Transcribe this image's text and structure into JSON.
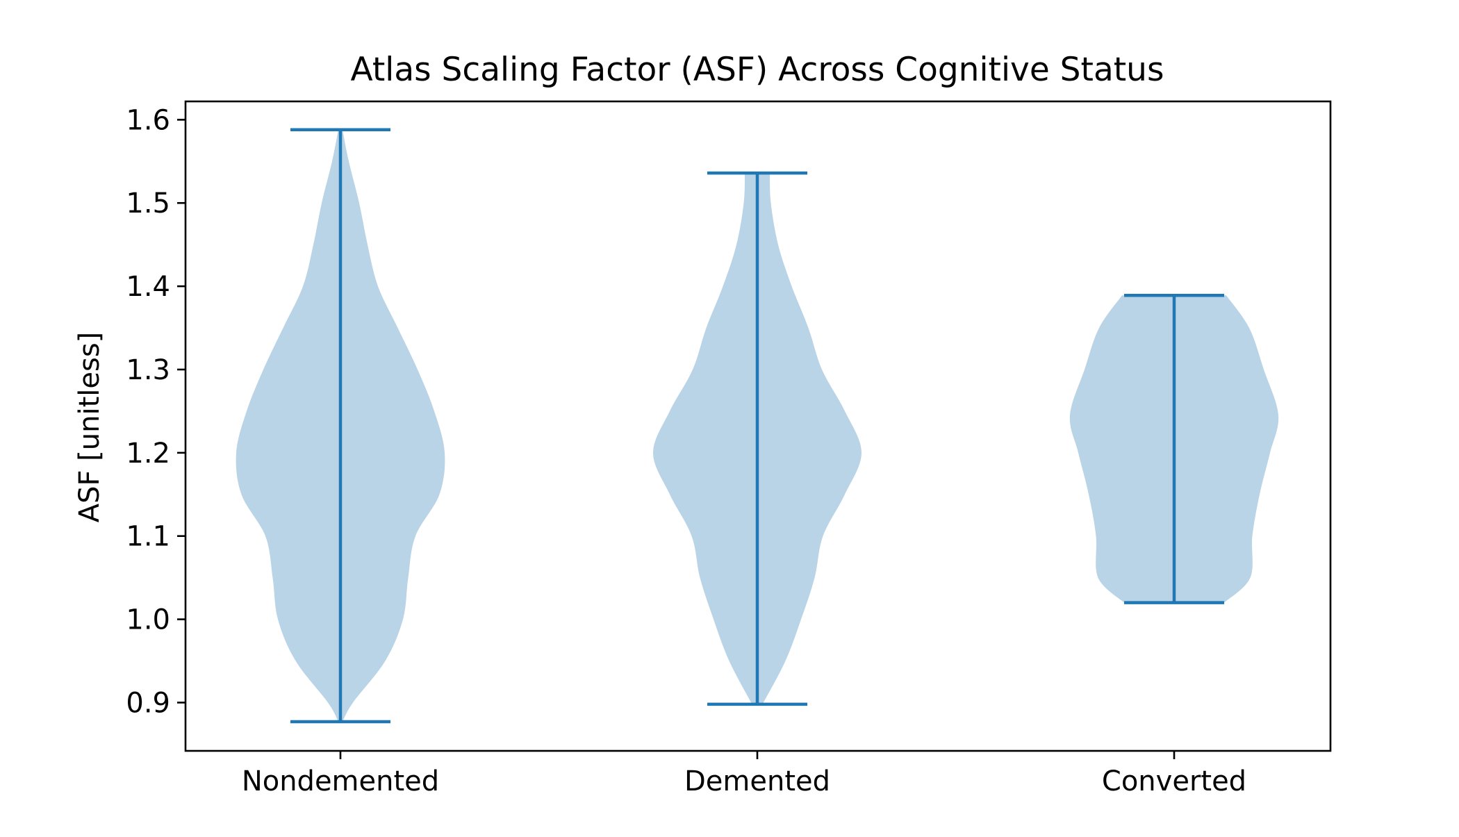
{
  "chart_data": {
    "type": "violin",
    "title": "Atlas Scaling Factor (ASF) Across Cognitive Status",
    "xlabel": "",
    "ylabel": "ASF [unitless]",
    "ylim": [
      0.842,
      1.622
    ],
    "yticks": [
      0.9,
      1.0,
      1.1,
      1.2,
      1.3,
      1.4,
      1.5,
      1.6
    ],
    "ytick_labels": [
      "0.9",
      "1.0",
      "1.1",
      "1.2",
      "1.3",
      "1.4",
      "1.5",
      "1.6"
    ],
    "categories": [
      "Nondemented",
      "Demented",
      "Converted"
    ],
    "grid": false,
    "legend": "none",
    "colors": {
      "body": "#b9d4e7",
      "lines": "#1f77b4",
      "axes": "#000000"
    },
    "series": [
      {
        "category": "Nondemented",
        "min": 0.877,
        "max": 1.588,
        "density": [
          [
            0.877,
            0.02
          ],
          [
            0.9,
            0.12
          ],
          [
            0.95,
            0.43
          ],
          [
            1.0,
            0.6
          ],
          [
            1.05,
            0.65
          ],
          [
            1.1,
            0.72
          ],
          [
            1.15,
            0.95
          ],
          [
            1.2,
            1.0
          ],
          [
            1.25,
            0.9
          ],
          [
            1.3,
            0.74
          ],
          [
            1.35,
            0.55
          ],
          [
            1.4,
            0.36
          ],
          [
            1.45,
            0.26
          ],
          [
            1.5,
            0.18
          ],
          [
            1.55,
            0.08
          ],
          [
            1.588,
            0.02
          ]
        ]
      },
      {
        "category": "Demented",
        "min": 0.898,
        "max": 1.536,
        "density": [
          [
            0.898,
            0.05
          ],
          [
            0.95,
            0.27
          ],
          [
            1.0,
            0.42
          ],
          [
            1.05,
            0.55
          ],
          [
            1.1,
            0.63
          ],
          [
            1.15,
            0.84
          ],
          [
            1.2,
            1.0
          ],
          [
            1.25,
            0.84
          ],
          [
            1.3,
            0.62
          ],
          [
            1.35,
            0.49
          ],
          [
            1.4,
            0.33
          ],
          [
            1.45,
            0.2
          ],
          [
            1.5,
            0.13
          ],
          [
            1.536,
            0.12
          ]
        ]
      },
      {
        "category": "Converted",
        "min": 1.02,
        "max": 1.389,
        "density": [
          [
            1.02,
            0.48
          ],
          [
            1.05,
            0.73
          ],
          [
            1.1,
            0.75
          ],
          [
            1.15,
            0.82
          ],
          [
            1.2,
            0.92
          ],
          [
            1.245,
            1.0
          ],
          [
            1.3,
            0.86
          ],
          [
            1.35,
            0.72
          ],
          [
            1.389,
            0.5
          ]
        ]
      }
    ]
  }
}
